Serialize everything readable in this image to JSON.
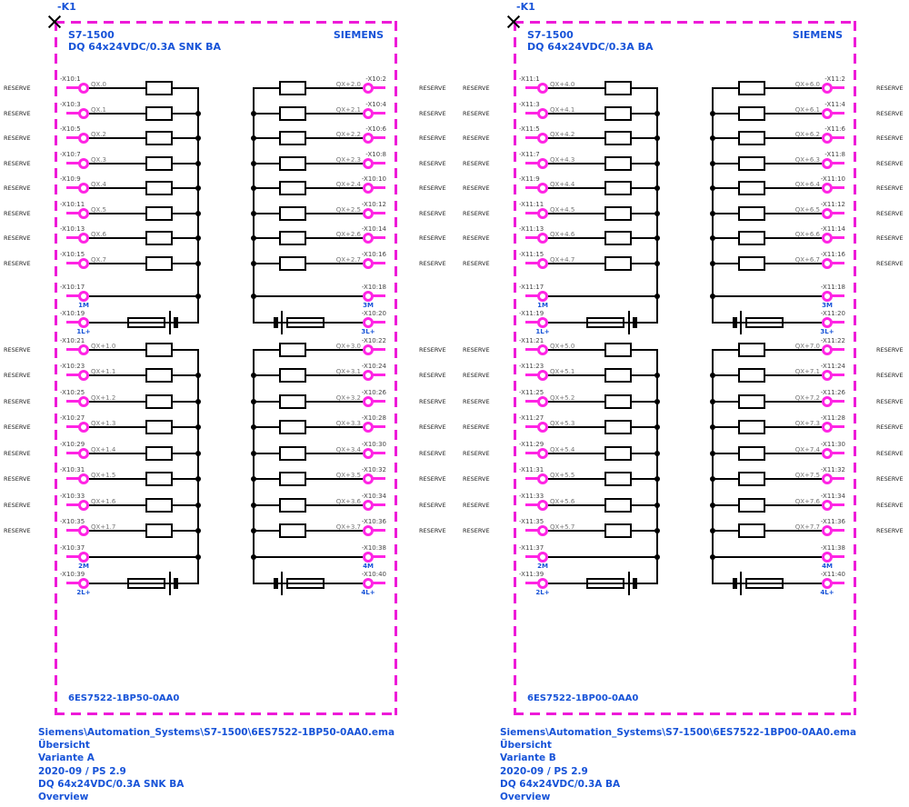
{
  "reserve_label": "RESERVE",
  "colors": {
    "magenta_border": "#ed1ad8",
    "terminal_magenta": "#ff24e4",
    "blue_text": "#1753d8",
    "pin_label": "#454545",
    "signal_label": "#757575",
    "wire": "#000000"
  },
  "panels": [
    {
      "device_tag": "-K1",
      "model": "S7-1500",
      "subtitle": "DQ 64x24VDC/0.3A SNK BA",
      "brand": "SIEMENS",
      "part_number": "6ES7522-1BP50-0AA0",
      "footer": [
        "Siemens\\Automation_Systems\\S7-1500\\6ES7522-1BP50-0AA0.ema",
        "Übersicht",
        "Variante A",
        "2020-09 / PS 2.9",
        "DQ 64x24VDC/0.3A SNK BA",
        "Overview"
      ],
      "columns": [
        {
          "side": "left",
          "groups": [
            {
              "channels": [
                {
                  "pin": "-X10:1",
                  "signal": "QX.0"
                },
                {
                  "pin": "-X10:3",
                  "signal": "QX.1"
                },
                {
                  "pin": "-X10:5",
                  "signal": "QX.2"
                },
                {
                  "pin": "-X10:7",
                  "signal": "QX.3"
                },
                {
                  "pin": "-X10:9",
                  "signal": "QX.4"
                },
                {
                  "pin": "-X10:11",
                  "signal": "QX.5"
                },
                {
                  "pin": "-X10:13",
                  "signal": "QX.6"
                },
                {
                  "pin": "-X10:15",
                  "signal": "QX.7"
                }
              ],
              "m": {
                "pin": "-X10:17",
                "label": "1M"
              },
              "l": {
                "pin": "-X10:19",
                "label": "1L+"
              }
            },
            {
              "channels": [
                {
                  "pin": "-X10:21",
                  "signal": "QX+1.0"
                },
                {
                  "pin": "-X10:23",
                  "signal": "QX+1.1"
                },
                {
                  "pin": "-X10:25",
                  "signal": "QX+1.2"
                },
                {
                  "pin": "-X10:27",
                  "signal": "QX+1.3"
                },
                {
                  "pin": "-X10:29",
                  "signal": "QX+1.4"
                },
                {
                  "pin": "-X10:31",
                  "signal": "QX+1.5"
                },
                {
                  "pin": "-X10:33",
                  "signal": "QX+1.6"
                },
                {
                  "pin": "-X10:35",
                  "signal": "QX+1.7"
                }
              ],
              "m": {
                "pin": "-X10:37",
                "label": "2M"
              },
              "l": {
                "pin": "-X10:39",
                "label": "2L+"
              }
            }
          ]
        },
        {
          "side": "right",
          "groups": [
            {
              "channels": [
                {
                  "pin": "-X10:2",
                  "signal": "QX+2.0"
                },
                {
                  "pin": "-X10:4",
                  "signal": "QX+2.1"
                },
                {
                  "pin": "-X10:6",
                  "signal": "QX+2.2"
                },
                {
                  "pin": "-X10:8",
                  "signal": "QX+2.3"
                },
                {
                  "pin": "-X10:10",
                  "signal": "QX+2.4"
                },
                {
                  "pin": "-X10:12",
                  "signal": "QX+2.5"
                },
                {
                  "pin": "-X10:14",
                  "signal": "QX+2.6"
                },
                {
                  "pin": "-X10:16",
                  "signal": "QX+2.7"
                }
              ],
              "m": {
                "pin": "-X10:18",
                "label": "3M"
              },
              "l": {
                "pin": "-X10:20",
                "label": "3L+"
              }
            },
            {
              "channels": [
                {
                  "pin": "-X10:22",
                  "signal": "QX+3.0"
                },
                {
                  "pin": "-X10:24",
                  "signal": "QX+3.1"
                },
                {
                  "pin": "-X10:26",
                  "signal": "QX+3.2"
                },
                {
                  "pin": "-X10:28",
                  "signal": "QX+3.3"
                },
                {
                  "pin": "-X10:30",
                  "signal": "QX+3.4"
                },
                {
                  "pin": "-X10:32",
                  "signal": "QX+3.5"
                },
                {
                  "pin": "-X10:34",
                  "signal": "QX+3.6"
                },
                {
                  "pin": "-X10:36",
                  "signal": "QX+3.7"
                }
              ],
              "m": {
                "pin": "-X10:38",
                "label": "4M"
              },
              "l": {
                "pin": "-X10:40",
                "label": "4L+"
              }
            }
          ]
        }
      ]
    },
    {
      "device_tag": "-K1",
      "model": "S7-1500",
      "subtitle": "DQ 64x24VDC/0.3A BA",
      "brand": "SIEMENS",
      "part_number": "6ES7522-1BP00-0AA0",
      "footer": [
        "Siemens\\Automation_Systems\\S7-1500\\6ES7522-1BP00-0AA0.ema",
        "Übersicht",
        "Variante B",
        "2020-09 / PS 2.9",
        "DQ 64x24VDC/0.3A BA",
        "Overview"
      ],
      "columns": [
        {
          "side": "left",
          "groups": [
            {
              "channels": [
                {
                  "pin": "-X11:1",
                  "signal": "QX+4.0"
                },
                {
                  "pin": "-X11:3",
                  "signal": "QX+4.1"
                },
                {
                  "pin": "-X11:5",
                  "signal": "QX+4.2"
                },
                {
                  "pin": "-X11:7",
                  "signal": "QX+4.3"
                },
                {
                  "pin": "-X11:9",
                  "signal": "QX+4.4"
                },
                {
                  "pin": "-X11:11",
                  "signal": "QX+4.5"
                },
                {
                  "pin": "-X11:13",
                  "signal": "QX+4.6"
                },
                {
                  "pin": "-X11:15",
                  "signal": "QX+4.7"
                }
              ],
              "m": {
                "pin": "-X11:17",
                "label": "1M"
              },
              "l": {
                "pin": "-X11:19",
                "label": "1L+"
              }
            },
            {
              "channels": [
                {
                  "pin": "-X11:21",
                  "signal": "QX+5.0"
                },
                {
                  "pin": "-X11:23",
                  "signal": "QX+5.1"
                },
                {
                  "pin": "-X11:25",
                  "signal": "QX+5.2"
                },
                {
                  "pin": "-X11:27",
                  "signal": "QX+5.3"
                },
                {
                  "pin": "-X11:29",
                  "signal": "QX+5.4"
                },
                {
                  "pin": "-X11:31",
                  "signal": "QX+5.5"
                },
                {
                  "pin": "-X11:33",
                  "signal": "QX+5.6"
                },
                {
                  "pin": "-X11:35",
                  "signal": "QX+5.7"
                }
              ],
              "m": {
                "pin": "-X11:37",
                "label": "2M"
              },
              "l": {
                "pin": "-X11:39",
                "label": "2L+"
              }
            }
          ]
        },
        {
          "side": "right",
          "groups": [
            {
              "channels": [
                {
                  "pin": "-X11:2",
                  "signal": "QX+6.0"
                },
                {
                  "pin": "-X11:4",
                  "signal": "QX+6.1"
                },
                {
                  "pin": "-X11:6",
                  "signal": "QX+6.2"
                },
                {
                  "pin": "-X11:8",
                  "signal": "QX+6.3"
                },
                {
                  "pin": "-X11:10",
                  "signal": "QX+6.4"
                },
                {
                  "pin": "-X11:12",
                  "signal": "QX+6.5"
                },
                {
                  "pin": "-X11:14",
                  "signal": "QX+6.6"
                },
                {
                  "pin": "-X11:16",
                  "signal": "QX+6.7"
                }
              ],
              "m": {
                "pin": "-X11:18",
                "label": "3M"
              },
              "l": {
                "pin": "-X11:20",
                "label": "3L+"
              }
            },
            {
              "channels": [
                {
                  "pin": "-X11:22",
                  "signal": "QX+7.0"
                },
                {
                  "pin": "-X11:24",
                  "signal": "QX+7.1"
                },
                {
                  "pin": "-X11:26",
                  "signal": "QX+7.2"
                },
                {
                  "pin": "-X11:28",
                  "signal": "QX+7.3"
                },
                {
                  "pin": "-X11:30",
                  "signal": "QX+7.4"
                },
                {
                  "pin": "-X11:32",
                  "signal": "QX+7.5"
                },
                {
                  "pin": "-X11:34",
                  "signal": "QX+7.6"
                },
                {
                  "pin": "-X11:36",
                  "signal": "QX+7.7"
                }
              ],
              "m": {
                "pin": "-X11:38",
                "label": "4M"
              },
              "l": {
                "pin": "-X11:40",
                "label": "4L+"
              }
            }
          ]
        }
      ]
    }
  ]
}
